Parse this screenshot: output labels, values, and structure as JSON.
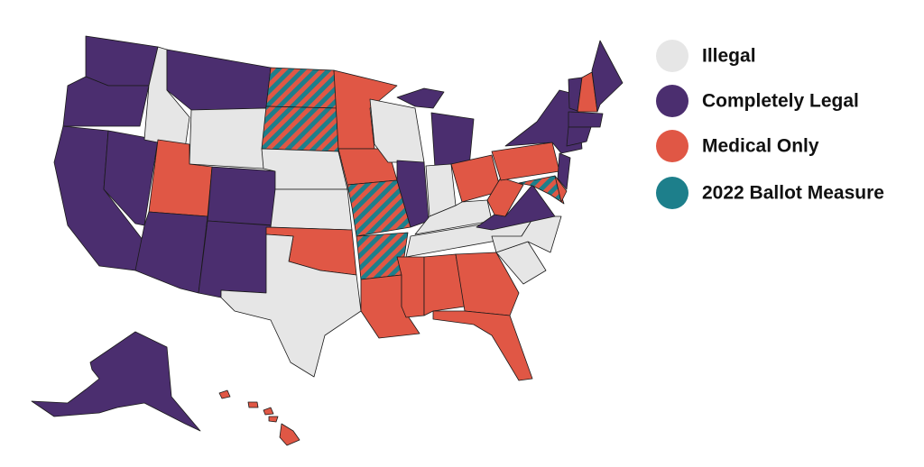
{
  "legend": {
    "items": [
      {
        "label": "Illegal",
        "color": "#e6e6e6"
      },
      {
        "label": "Completely Legal",
        "color": "#4b2e6f"
      },
      {
        "label": "Medical Only",
        "color": "#e05745"
      },
      {
        "label": "2022 Ballot Measure",
        "color": "#1d7f8b"
      }
    ]
  }
}
